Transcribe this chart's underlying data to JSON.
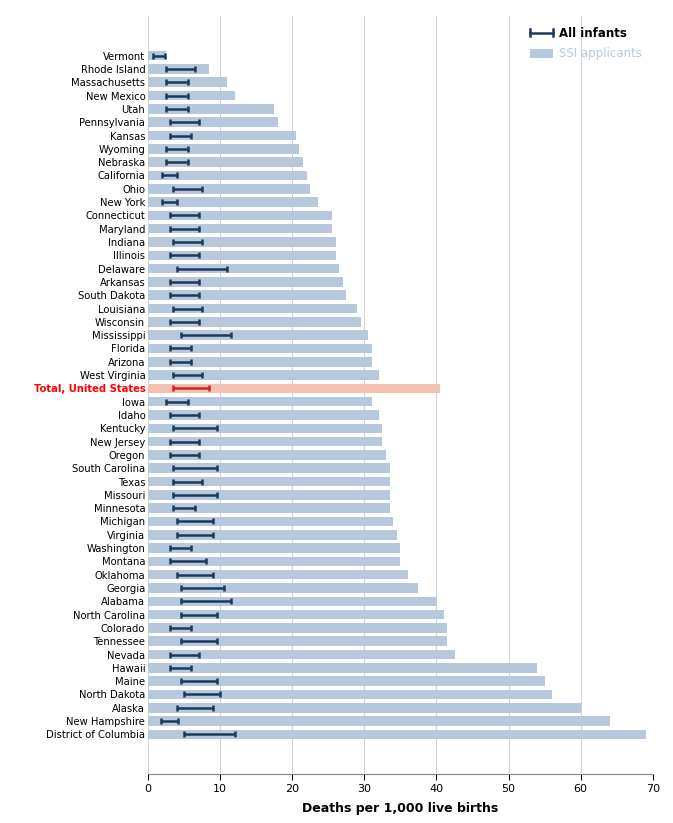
{
  "states": [
    "Vermont",
    "Rhode Island",
    "Massachusetts",
    "New Mexico",
    "Utah",
    "Pennsylvania",
    "Kansas",
    "Wyoming",
    "Nebraska",
    "California",
    "Ohio",
    "New York",
    "Connecticut",
    "Maryland",
    "Indiana",
    "Illinois",
    "Delaware",
    "Arkansas",
    "South Dakota",
    "Louisiana",
    "Wisconsin",
    "Mississippi",
    "Florida",
    "Arizona",
    "West Virginia",
    "Total, United States",
    "Iowa",
    "Idaho",
    "Kentucky",
    "New Jersey",
    "Oregon",
    "South Carolina",
    "Texas",
    "Missouri",
    "Minnesota",
    "Michigan",
    "Virginia",
    "Washington",
    "Montana",
    "Oklahoma",
    "Georgia",
    "Alabama",
    "North Carolina",
    "Colorado",
    "Tennessee",
    "Nevada",
    "Hawaii",
    "Maine",
    "North Dakota",
    "Alaska",
    "New Hampshire",
    "District of Columbia"
  ],
  "ssi_values": [
    2.5,
    8.5,
    11.0,
    12.0,
    17.5,
    18.0,
    20.5,
    21.0,
    21.5,
    22.0,
    22.5,
    23.5,
    25.5,
    25.5,
    26.0,
    26.0,
    26.5,
    27.0,
    27.5,
    29.0,
    29.5,
    30.5,
    31.0,
    31.0,
    32.0,
    40.5,
    31.0,
    32.0,
    32.5,
    32.5,
    33.0,
    33.5,
    33.5,
    33.5,
    33.5,
    34.0,
    34.5,
    35.0,
    35.0,
    36.0,
    37.5,
    40.0,
    41.0,
    41.5,
    41.5,
    42.5,
    54.0,
    55.0,
    56.0,
    60.0,
    64.0,
    69.0
  ],
  "infant_values": [
    1.5,
    4.5,
    4.0,
    4.0,
    4.0,
    5.0,
    4.5,
    4.0,
    4.0,
    3.0,
    5.5,
    3.0,
    5.0,
    5.0,
    5.5,
    5.0,
    7.5,
    5.0,
    5.0,
    5.5,
    5.0,
    8.0,
    4.5,
    4.5,
    5.5,
    6.0,
    4.0,
    5.0,
    6.5,
    5.0,
    5.0,
    6.5,
    5.5,
    6.5,
    5.0,
    6.5,
    6.5,
    4.5,
    5.5,
    6.5,
    7.5,
    8.0,
    7.0,
    4.5,
    7.0,
    5.0,
    4.5,
    7.0,
    7.5,
    6.5,
    3.0,
    8.5
  ],
  "infant_err_low": [
    0.8,
    2.0,
    1.5,
    1.5,
    1.5,
    2.0,
    1.5,
    1.5,
    1.5,
    1.0,
    2.0,
    1.0,
    2.0,
    2.0,
    2.0,
    2.0,
    3.5,
    2.0,
    2.0,
    2.0,
    2.0,
    3.5,
    1.5,
    1.5,
    2.0,
    2.5,
    1.5,
    2.0,
    3.0,
    2.0,
    2.0,
    3.0,
    2.0,
    3.0,
    1.5,
    2.5,
    2.5,
    1.5,
    2.5,
    2.5,
    3.0,
    3.5,
    2.5,
    1.5,
    2.5,
    2.0,
    1.5,
    2.5,
    2.5,
    2.5,
    1.2,
    3.5
  ],
  "infant_err_high": [
    0.8,
    2.0,
    1.5,
    1.5,
    1.5,
    2.0,
    1.5,
    1.5,
    1.5,
    1.0,
    2.0,
    1.0,
    2.0,
    2.0,
    2.0,
    2.0,
    3.5,
    2.0,
    2.0,
    2.0,
    2.0,
    3.5,
    1.5,
    1.5,
    2.0,
    2.5,
    1.5,
    2.0,
    3.0,
    2.0,
    2.0,
    3.0,
    2.0,
    3.0,
    1.5,
    2.5,
    2.5,
    1.5,
    2.5,
    2.5,
    3.0,
    3.5,
    2.5,
    1.5,
    2.5,
    2.0,
    1.5,
    2.5,
    2.5,
    2.5,
    1.2,
    3.5
  ],
  "bar_color_normal": "#b8c8dc",
  "bar_color_total": "#f4c0b0",
  "bar_color_total_label": "Total, United States",
  "error_bar_color": "#1a3a5c",
  "error_bar_color_total": "#cc2222",
  "xlabel": "Deaths per 1,000 live births",
  "xlim": [
    0,
    70
  ],
  "xticks": [
    0,
    10,
    20,
    30,
    40,
    50,
    60,
    70
  ],
  "legend_line_color": "#1a3a5c",
  "legend_bar_color": "#b8c8dc",
  "grid_color": "#d0d0d0",
  "background_color": "#ffffff",
  "fig_width": 6.73,
  "fig_height": 8.23,
  "dpi": 100
}
